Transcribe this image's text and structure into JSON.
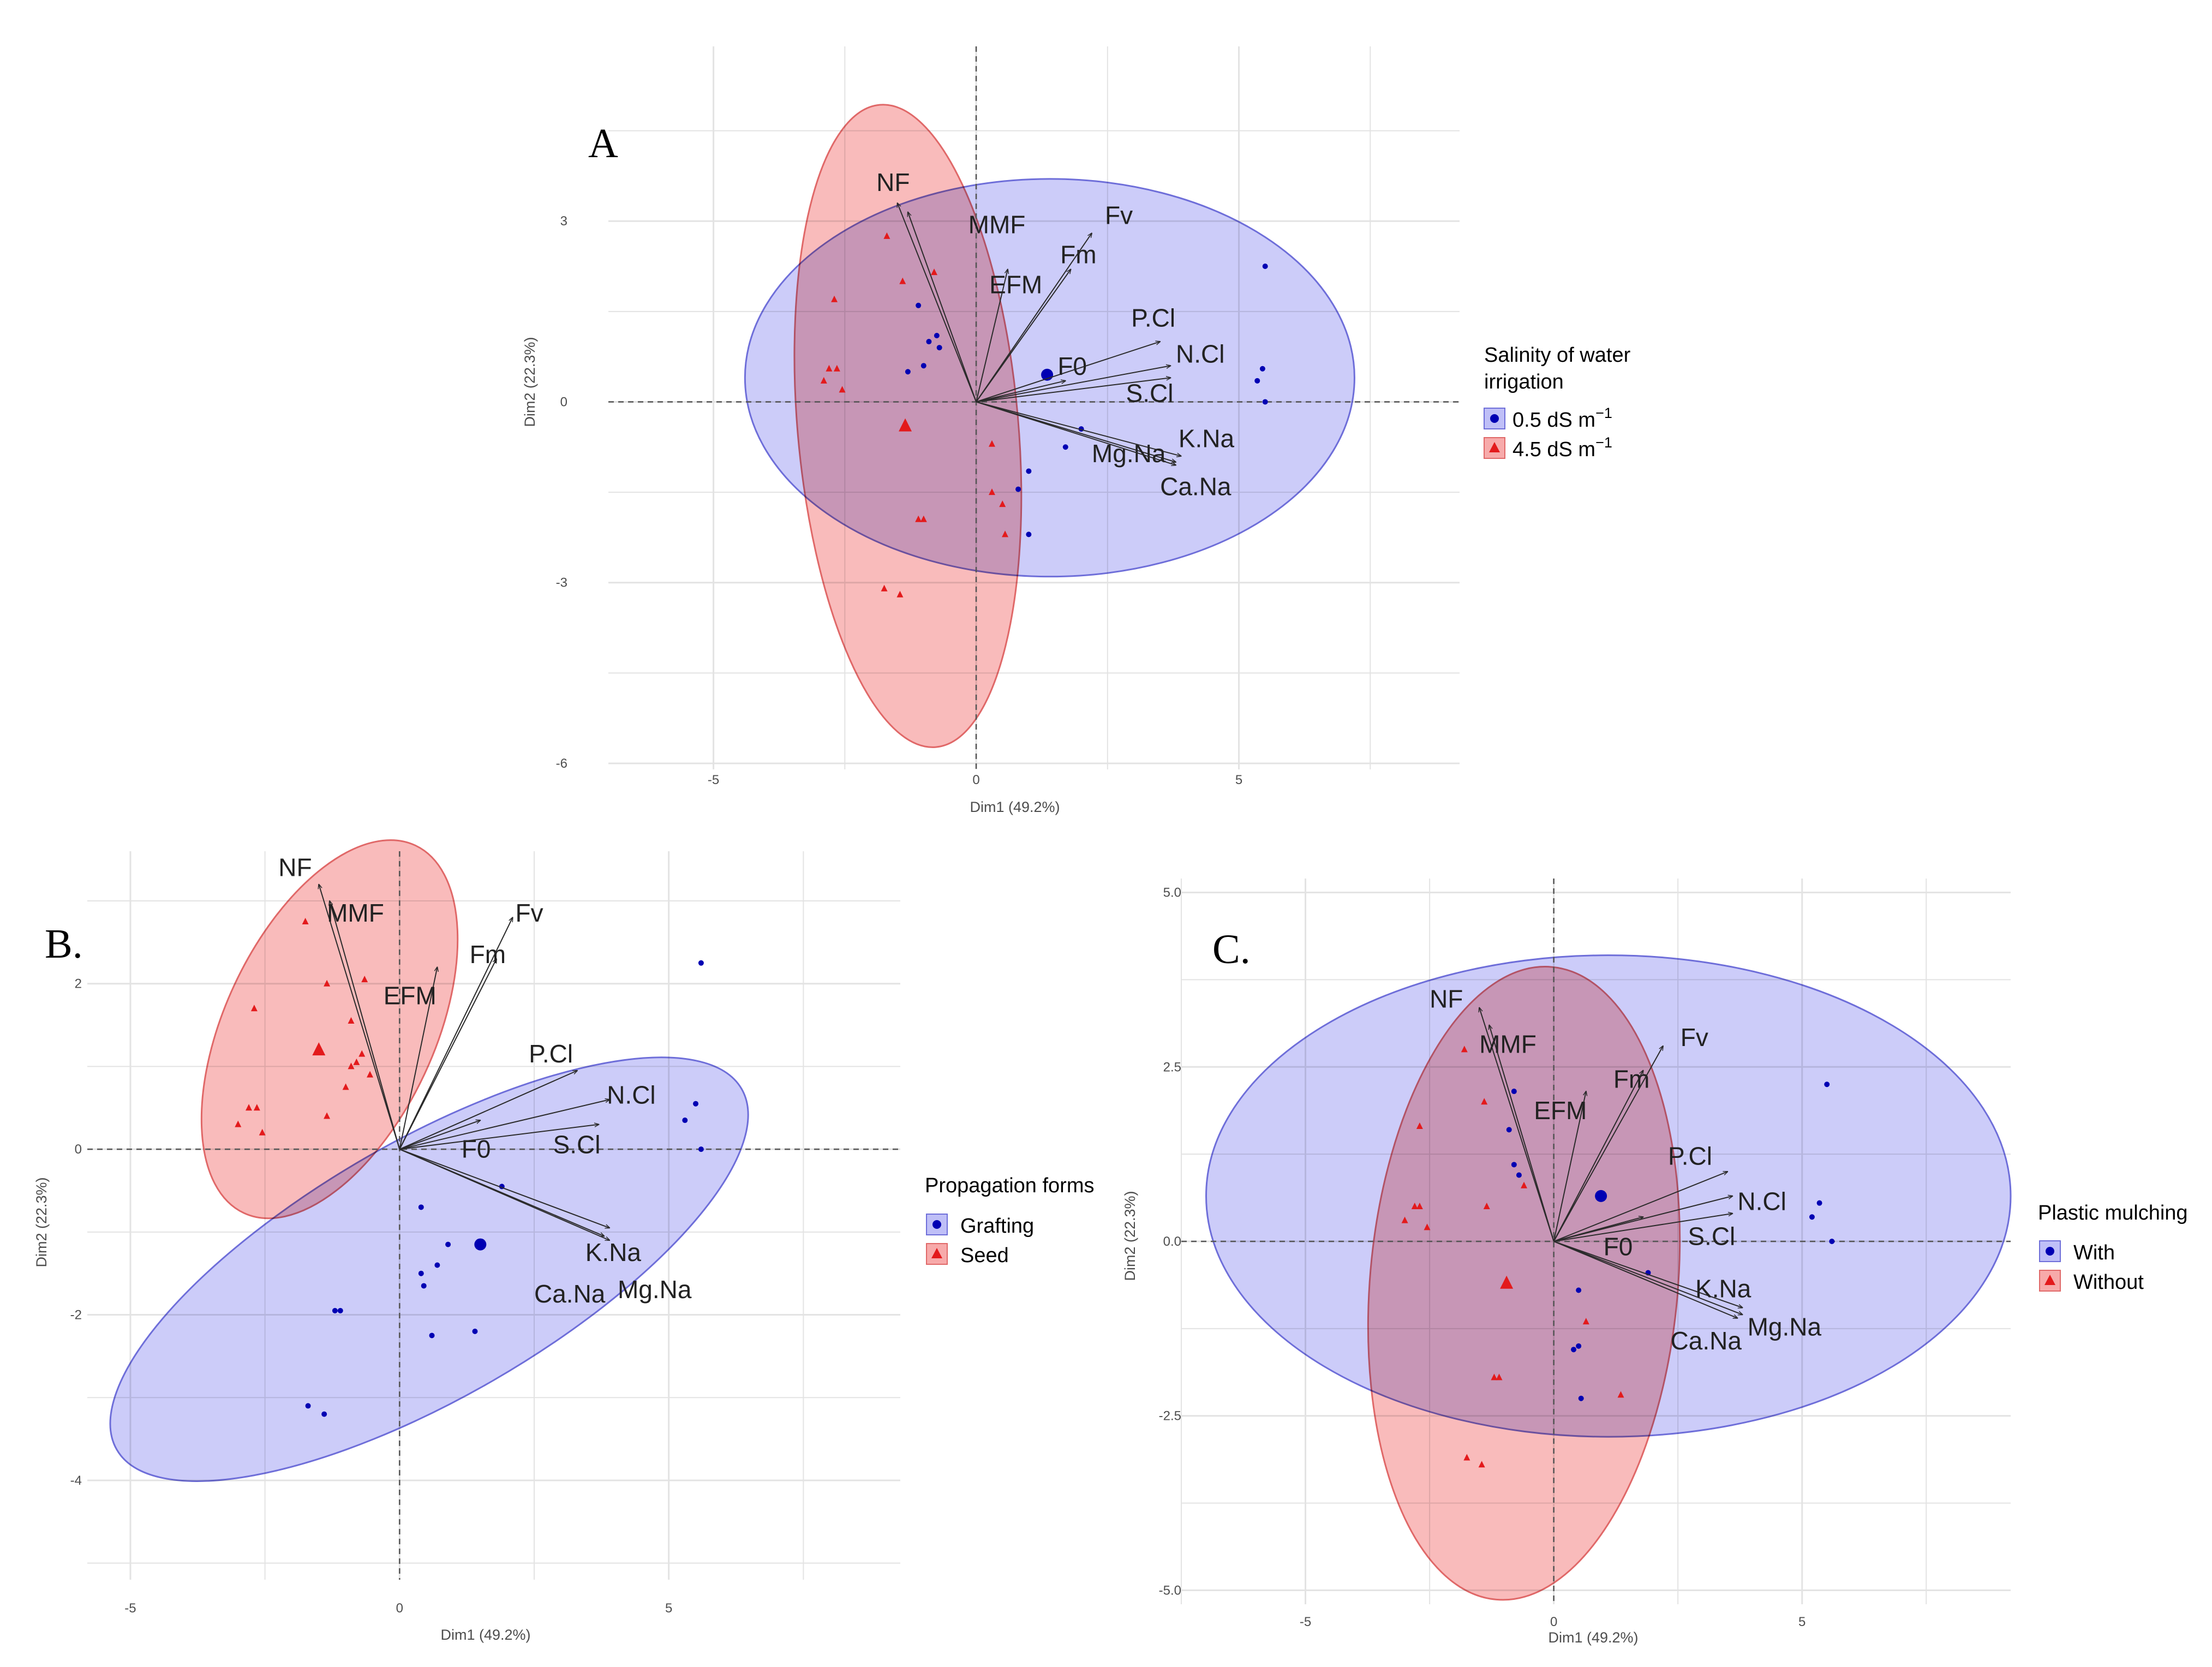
{
  "figure_title": "",
  "colors": {
    "group1": "#0000b3",
    "group2": "#e31a1c",
    "ellipse1_fill": "#bfbff7",
    "ellipse1_stroke": "#6e6ed9",
    "ellipse2_fill": "#f7aaaa",
    "ellipse2_stroke": "#e06868",
    "grid": "#e3e3e3",
    "arrow": "#2b2b2b"
  },
  "chart_data": [
    {
      "type": "scatter",
      "subtype": "pca-biplot",
      "panel": "A",
      "xlabel": "Dim1 (49.2%)",
      "ylabel": "Dim2 (22.3%)",
      "xlim": [
        -7,
        9.2
      ],
      "ylim": [
        -6.1,
        5.9
      ],
      "xticks": [
        -5,
        0,
        5
      ],
      "yticks": [
        -6,
        -3,
        0,
        3
      ],
      "xtick_labels": [
        "-5",
        "0",
        "5"
      ],
      "ytick_labels": [
        "-6",
        "-3",
        "0",
        "3"
      ],
      "legend": {
        "title_lines": [
          "Salinity of water",
          "irrigation"
        ],
        "items": [
          {
            "label": "0.5 dS m",
            "sup": "−1",
            "shape": "circle"
          },
          {
            "label": "4.5 dS m",
            "sup": "−1",
            "shape": "triangle"
          }
        ]
      },
      "ellipses": [
        {
          "group": 1,
          "cx": 1.4,
          "cy": 0.4,
          "rx": 5.8,
          "ry": 3.3,
          "angle": 0
        },
        {
          "group": 2,
          "cx": -1.3,
          "cy": -0.4,
          "rx": 2.1,
          "ry": 5.35,
          "angle": -5
        }
      ],
      "variables": [
        {
          "name": "NF",
          "x": -1.5,
          "y": 3.3,
          "lx": -1.9,
          "ly": 3.5
        },
        {
          "name": "MMF",
          "x": -1.3,
          "y": 3.15,
          "lx": -0.15,
          "ly": 2.8
        },
        {
          "name": "EFM",
          "x": 0.6,
          "y": 2.2,
          "lx": 0.25,
          "ly": 1.8
        },
        {
          "name": "Fm",
          "x": 1.8,
          "y": 2.2,
          "lx": 1.6,
          "ly": 2.3
        },
        {
          "name": "Fv",
          "x": 2.2,
          "y": 2.8,
          "lx": 2.45,
          "ly": 2.95
        },
        {
          "name": "P.Cl",
          "x": 3.5,
          "y": 1.0,
          "lx": 2.95,
          "ly": 1.25
        },
        {
          "name": "N.Cl",
          "x": 3.7,
          "y": 0.6,
          "lx": 3.8,
          "ly": 0.65
        },
        {
          "name": "F0",
          "x": 1.7,
          "y": 0.35,
          "lx": 1.55,
          "ly": 0.45
        },
        {
          "name": "S.Cl",
          "x": 3.7,
          "y": 0.4,
          "lx": 2.85,
          "ly": 0.0
        },
        {
          "name": "K.Na",
          "x": 3.9,
          "y": -0.9,
          "lx": 3.85,
          "ly": -0.75
        },
        {
          "name": "Mg.Na",
          "x": 3.8,
          "y": -1.0,
          "lx": 2.2,
          "ly": -1.0
        },
        {
          "name": "Ca.Na",
          "x": 3.8,
          "y": -1.05,
          "lx": 3.5,
          "ly": -1.55
        }
      ],
      "groups": [
        {
          "name": "0.5 dS m⁻¹",
          "shape": "circle",
          "points": [
            [
              -1.1,
              1.6
            ],
            [
              -0.9,
              1.0
            ],
            [
              -0.75,
              1.1
            ],
            [
              -0.7,
              0.9
            ],
            [
              -1.0,
              0.6
            ],
            [
              -1.3,
              0.5
            ],
            [
              1.0,
              -1.15
            ],
            [
              0.8,
              -1.45
            ],
            [
              1.0,
              -2.2
            ],
            [
              5.5,
              2.25
            ],
            [
              5.45,
              0.55
            ],
            [
              5.35,
              0.35
            ],
            [
              5.5,
              0.0
            ],
            [
              2.0,
              -0.45
            ],
            [
              1.7,
              -0.75
            ]
          ],
          "centroid": [
            1.35,
            0.45
          ]
        },
        {
          "name": "4.5 dS m⁻¹",
          "shape": "triangle",
          "points": [
            [
              -1.7,
              2.75
            ],
            [
              -1.4,
              2.0
            ],
            [
              -0.8,
              2.15
            ],
            [
              -2.7,
              1.7
            ],
            [
              -2.8,
              0.55
            ],
            [
              -2.65,
              0.55
            ],
            [
              -2.55,
              0.2
            ],
            [
              -2.9,
              0.35
            ],
            [
              0.3,
              -0.7
            ],
            [
              0.3,
              -1.5
            ],
            [
              0.5,
              -1.7
            ],
            [
              -1.1,
              -1.95
            ],
            [
              -1.0,
              -1.95
            ],
            [
              0.55,
              -2.2
            ],
            [
              -1.75,
              -3.1
            ],
            [
              -1.45,
              -3.2
            ]
          ],
          "centroid": [
            -1.35,
            -0.4
          ]
        }
      ]
    },
    {
      "type": "scatter",
      "subtype": "pca-biplot",
      "panel": "B.",
      "xlabel": "Dim1 (49.2%)",
      "ylabel": "Dim2 (22.3%)",
      "xlim": [
        -5.8,
        9.3
      ],
      "ylim": [
        -5.2,
        3.6
      ],
      "xticks": [
        -5,
        0,
        5
      ],
      "yticks": [
        -4,
        -2,
        0,
        2
      ],
      "xtick_labels": [
        "-5",
        "0",
        "5"
      ],
      "ytick_labels": [
        "-4",
        "-2",
        "0",
        "2"
      ],
      "legend": {
        "title_lines": [
          "Propagation forms"
        ],
        "items": [
          {
            "label": "Grafting",
            "sup": "",
            "shape": "circle"
          },
          {
            "label": "Seed",
            "sup": "",
            "shape": "triangle"
          }
        ]
      },
      "ellipses": [
        {
          "group": 1,
          "cx": 0.55,
          "cy": -1.45,
          "rx": 6.7,
          "ry": 1.55,
          "angle": -30
        },
        {
          "group": 2,
          "cx": -1.3,
          "cy": 1.45,
          "rx": 1.95,
          "ry": 2.45,
          "angle": 25
        }
      ],
      "variables": [
        {
          "name": "NF",
          "x": -1.5,
          "y": 3.2,
          "lx": -2.25,
          "ly": 3.3
        },
        {
          "name": "MMF",
          "x": -1.3,
          "y": 3.0,
          "lx": -1.35,
          "ly": 2.75
        },
        {
          "name": "EFM",
          "x": 0.7,
          "y": 2.2,
          "lx": -0.3,
          "ly": 1.75
        },
        {
          "name": "Fm",
          "x": 1.8,
          "y": 2.3,
          "lx": 1.3,
          "ly": 2.25
        },
        {
          "name": "Fv",
          "x": 2.1,
          "y": 2.8,
          "lx": 2.15,
          "ly": 2.75
        },
        {
          "name": "P.Cl",
          "x": 3.3,
          "y": 0.95,
          "lx": 2.4,
          "ly": 1.05
        },
        {
          "name": "N.Cl",
          "x": 3.9,
          "y": 0.6,
          "lx": 3.85,
          "ly": 0.55
        },
        {
          "name": "F0",
          "x": 1.5,
          "y": 0.35,
          "lx": 1.15,
          "ly": -0.1
        },
        {
          "name": "S.Cl",
          "x": 3.7,
          "y": 0.3,
          "lx": 2.85,
          "ly": -0.05
        },
        {
          "name": "K.Na",
          "x": 3.9,
          "y": -0.95,
          "lx": 3.45,
          "ly": -1.35
        },
        {
          "name": "Mg.Na",
          "x": 3.9,
          "y": -1.1,
          "lx": 4.05,
          "ly": -1.8
        },
        {
          "name": "Ca.Na",
          "x": 3.8,
          "y": -1.05,
          "lx": 2.5,
          "ly": -1.85
        }
      ],
      "groups": [
        {
          "name": "Grafting",
          "shape": "circle",
          "points": [
            [
              0.4,
              -0.7
            ],
            [
              0.9,
              -1.15
            ],
            [
              0.7,
              -1.4
            ],
            [
              0.4,
              -1.5
            ],
            [
              0.45,
              -1.65
            ],
            [
              0.6,
              -2.25
            ],
            [
              1.4,
              -2.2
            ],
            [
              -1.1,
              -1.95
            ],
            [
              -1.2,
              -1.95
            ],
            [
              -1.7,
              -3.1
            ],
            [
              -1.4,
              -3.2
            ],
            [
              5.6,
              2.25
            ],
            [
              5.5,
              0.55
            ],
            [
              5.3,
              0.35
            ],
            [
              5.6,
              0.0
            ],
            [
              1.9,
              -0.45
            ]
          ],
          "centroid": [
            1.5,
            -1.15
          ]
        },
        {
          "name": "Seed",
          "shape": "triangle",
          "points": [
            [
              -1.75,
              2.75
            ],
            [
              -1.35,
              2.0
            ],
            [
              -0.65,
              2.05
            ],
            [
              -2.7,
              1.7
            ],
            [
              -2.8,
              0.5
            ],
            [
              -2.65,
              0.5
            ],
            [
              -2.55,
              0.2
            ],
            [
              -3.0,
              0.3
            ],
            [
              -0.8,
              1.05
            ],
            [
              -0.7,
              1.15
            ],
            [
              -0.9,
              1.0
            ],
            [
              -0.55,
              0.9
            ],
            [
              -1.0,
              0.75
            ],
            [
              -1.35,
              0.4
            ],
            [
              -0.9,
              1.55
            ]
          ],
          "centroid": [
            -1.5,
            1.2
          ]
        }
      ]
    },
    {
      "type": "scatter",
      "subtype": "pca-biplot",
      "panel": "C.",
      "xlabel": "Dim1 (49.2%)",
      "ylabel": "Dim2 (22.3%)",
      "xlim": [
        -7.5,
        9.2
      ],
      "ylim": [
        -5.2,
        5.2
      ],
      "xticks": [
        -5,
        0,
        5
      ],
      "yticks": [
        -5.0,
        -2.5,
        0.0,
        2.5,
        5.0
      ],
      "xtick_labels": [
        "-5",
        "0",
        "5"
      ],
      "ytick_labels": [
        "-5.0",
        "-2.5",
        "0.0",
        "2.5",
        "5.0"
      ],
      "legend": {
        "title_lines": [
          "Plastic mulching"
        ],
        "items": [
          {
            "label": "With",
            "sup": "",
            "shape": "circle"
          },
          {
            "label": "Without",
            "sup": "",
            "shape": "triangle"
          }
        ]
      },
      "ellipses": [
        {
          "group": 1,
          "cx": 1.1,
          "cy": 0.65,
          "rx": 8.1,
          "ry": 3.45,
          "angle": 0
        },
        {
          "group": 2,
          "cx": -0.6,
          "cy": -0.6,
          "rx": 3.1,
          "ry": 4.55,
          "angle": 5
        }
      ],
      "variables": [
        {
          "name": "NF",
          "x": -1.5,
          "y": 3.35,
          "lx": -2.5,
          "ly": 3.35
        },
        {
          "name": "MMF",
          "x": -1.3,
          "y": 3.1,
          "lx": -1.5,
          "ly": 2.7
        },
        {
          "name": "EFM",
          "x": 0.65,
          "y": 2.15,
          "lx": -0.4,
          "ly": 1.75
        },
        {
          "name": "Fm",
          "x": 1.8,
          "y": 2.45,
          "lx": 1.2,
          "ly": 2.2
        },
        {
          "name": "Fv",
          "x": 2.2,
          "y": 2.8,
          "lx": 2.55,
          "ly": 2.8
        },
        {
          "name": "P.Cl",
          "x": 3.5,
          "y": 1.0,
          "lx": 2.3,
          "ly": 1.1
        },
        {
          "name": "N.Cl",
          "x": 3.6,
          "y": 0.65,
          "lx": 3.7,
          "ly": 0.45
        },
        {
          "name": "F0",
          "x": 1.8,
          "y": 0.35,
          "lx": 1.0,
          "ly": -0.2
        },
        {
          "name": "S.Cl",
          "x": 3.6,
          "y": 0.4,
          "lx": 2.7,
          "ly": -0.05
        },
        {
          "name": "K.Na",
          "x": 3.8,
          "y": -0.95,
          "lx": 2.85,
          "ly": -0.8
        },
        {
          "name": "Mg.Na",
          "x": 3.8,
          "y": -1.05,
          "lx": 3.9,
          "ly": -1.35
        },
        {
          "name": "Ca.Na",
          "x": 3.7,
          "y": -1.1,
          "lx": 2.35,
          "ly": -1.55
        }
      ],
      "groups": [
        {
          "name": "With",
          "shape": "circle",
          "points": [
            [
              -0.8,
              2.15
            ],
            [
              -0.9,
              1.6
            ],
            [
              -0.8,
              1.1
            ],
            [
              -0.7,
              0.95
            ],
            [
              0.5,
              -0.7
            ],
            [
              0.5,
              -1.5
            ],
            [
              0.4,
              -1.55
            ],
            [
              0.55,
              -2.25
            ],
            [
              5.5,
              2.25
            ],
            [
              5.35,
              0.55
            ],
            [
              5.2,
              0.35
            ],
            [
              5.6,
              0.0
            ],
            [
              1.9,
              -0.45
            ]
          ],
          "centroid": [
            0.95,
            0.65
          ]
        },
        {
          "name": "Without",
          "shape": "triangle",
          "points": [
            [
              -1.8,
              2.75
            ],
            [
              -1.4,
              2.0
            ],
            [
              -2.7,
              1.65
            ],
            [
              -2.8,
              0.5
            ],
            [
              -2.7,
              0.5
            ],
            [
              -2.55,
              0.2
            ],
            [
              -3.0,
              0.3
            ],
            [
              -1.35,
              0.5
            ],
            [
              -0.6,
              0.8
            ],
            [
              0.65,
              -1.15
            ],
            [
              -1.2,
              -1.95
            ],
            [
              -1.1,
              -1.95
            ],
            [
              1.35,
              -2.2
            ],
            [
              -1.75,
              -3.1
            ],
            [
              -1.45,
              -3.2
            ]
          ],
          "centroid": [
            -0.95,
            -0.6
          ]
        }
      ]
    }
  ]
}
